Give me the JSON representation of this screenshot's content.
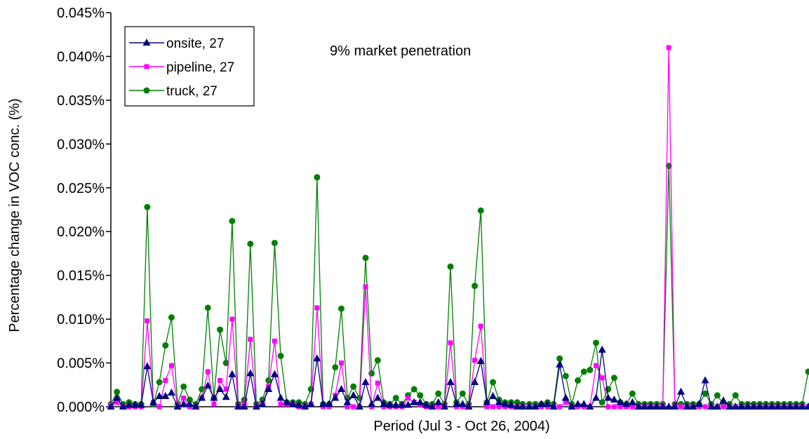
{
  "chart_data": {
    "type": "line",
    "title": "",
    "annotation": "9% market penetration",
    "xlabel": "Period (Jul 3 - Oct 26, 2004)",
    "ylabel": "Percentage change in VOC conc. (%)",
    "ylim": [
      0,
      0.045
    ],
    "yticks": [
      "0.000%",
      "0.005%",
      "0.010%",
      "0.015%",
      "0.020%",
      "0.025%",
      "0.030%",
      "0.035%",
      "0.040%",
      "0.045%"
    ],
    "grid": false,
    "legend_position": "top-left",
    "x": [
      0,
      1,
      2,
      3,
      4,
      5,
      6,
      7,
      8,
      9,
      10,
      11,
      12,
      13,
      14,
      15,
      16,
      17,
      18,
      19,
      20,
      21,
      22,
      23,
      24,
      25,
      26,
      27,
      28,
      29,
      30,
      31,
      32,
      33,
      34,
      35,
      36,
      37,
      38,
      39,
      40,
      41,
      42,
      43,
      44,
      45,
      46,
      47,
      48,
      49,
      50,
      51,
      52,
      53,
      54,
      55,
      56,
      57,
      58,
      59,
      60,
      61,
      62,
      63,
      64,
      65,
      66,
      67,
      67.9,
      69,
      70,
      71,
      72,
      73,
      74,
      75,
      76,
      77,
      78,
      79,
      80,
      81,
      82,
      83,
      84,
      85,
      86,
      87,
      88,
      89,
      90,
      91,
      92,
      93,
      94,
      95,
      96,
      97,
      98,
      99,
      100,
      101,
      102,
      103,
      104,
      105,
      106,
      107,
      108,
      109,
      110,
      111,
      112,
      113,
      114,
      115
    ],
    "series": [
      {
        "name": "onsite, 27",
        "color": "#000080",
        "marker": "triangle",
        "values": [
          0.0,
          0.001,
          0.0,
          0.0002,
          0.0002,
          0.0002,
          0.0046,
          0.0005,
          0.0012,
          0.0012,
          0.0016,
          0.0,
          0.0003,
          0.0003,
          0.0,
          0.001,
          0.0024,
          0.001,
          0.002,
          0.0011,
          0.0037,
          0.0,
          0.0,
          0.0038,
          0.0,
          0.0003,
          0.002,
          0.0037,
          0.001,
          0.0005,
          0.0003,
          0.0002,
          0.0,
          0.0003,
          0.0055,
          0.0003,
          0.0003,
          0.001,
          0.002,
          0.0005,
          0.0013,
          0.0,
          0.0028,
          0.0003,
          0.001,
          0.0003,
          0.0002,
          0.0002,
          0.0002,
          0.0002,
          0.0005,
          0.0005,
          0.0002,
          0.0,
          0.0005,
          0.0,
          0.0028,
          0.0003,
          0.0003,
          0.0,
          0.0028,
          0.0052,
          0.0005,
          0.0012,
          0.0005,
          0.0003,
          0.0002,
          0.0,
          0.0,
          0.0,
          0.0,
          0.0003,
          0.0003,
          0.0,
          0.0048,
          0.001,
          0.0,
          0.0003,
          0.0003,
          0.0,
          0.001,
          0.0065,
          0.001,
          0.0008,
          0.0005,
          0.0003,
          0.0005,
          0.0,
          0.0,
          0.0,
          0.0,
          0.0,
          0.0,
          0.0,
          0.0017,
          0.0,
          0.0,
          0.0003,
          0.003,
          0.0,
          0.0,
          0.0007,
          0.0,
          0.0,
          0.0,
          0.0,
          0.0,
          0.0,
          0.0,
          0.0,
          0.0,
          0.0,
          0.0,
          0.0,
          0.0,
          0.0
        ]
      },
      {
        "name": "pipeline, 27",
        "color": "#FF00FF",
        "marker": "square",
        "values": [
          0.0002,
          0.0005,
          0.0,
          0.0,
          0.0,
          0.0,
          0.0098,
          0.0005,
          0.0,
          0.003,
          0.0047,
          0.0,
          0.001,
          0.0,
          0.0,
          0.001,
          0.004,
          0.0003,
          0.003,
          0.002,
          0.01,
          0.0,
          0.0003,
          0.0077,
          0.0,
          0.0003,
          0.0023,
          0.0075,
          0.0003,
          0.0003,
          0.0003,
          0.0,
          0.0,
          0.0003,
          0.0113,
          0.0,
          0.0,
          0.0013,
          0.005,
          0.0,
          0.0,
          0.0,
          0.0137,
          0.0,
          0.0027,
          0.0,
          0.0,
          0.0,
          0.0,
          0.001,
          0.0005,
          0.0002,
          0.0,
          0.0,
          0.0,
          0.0,
          0.0073,
          0.0,
          0.0,
          0.0,
          0.0053,
          0.0092,
          0.0,
          0.0,
          0.0,
          0.0,
          0.0,
          0.0,
          0.0,
          0.0,
          0.0,
          0.0,
          0.0,
          0.0,
          0.0,
          0.0005,
          0.0,
          0.0,
          0.0,
          0.0,
          0.0047,
          0.0033,
          0.0,
          0.0,
          0.0,
          0.0,
          0.0,
          0.0,
          0.0,
          0.0,
          0.0,
          0.0,
          0.041,
          0.0,
          0.0,
          0.0,
          0.0,
          0.0,
          0.0,
          0.0,
          0.0,
          0.0,
          0.0,
          0.0,
          0.0,
          0.0,
          0.0,
          0.0,
          0.0,
          0.0,
          0.0,
          0.0,
          0.0,
          0.0,
          0.0,
          0.0
        ]
      },
      {
        "name": "truck, 27",
        "color": "#008000",
        "marker": "circle",
        "values": [
          0.0003,
          0.0017,
          0.0003,
          0.0005,
          0.0003,
          0.0003,
          0.0228,
          0.0003,
          0.0028,
          0.007,
          0.0102,
          0.0003,
          0.0023,
          0.0008,
          0.0003,
          0.002,
          0.0113,
          0.001,
          0.0088,
          0.005,
          0.0212,
          0.0003,
          0.0008,
          0.0186,
          0.0003,
          0.0008,
          0.003,
          0.0187,
          0.0058,
          0.0005,
          0.0005,
          0.0005,
          0.0003,
          0.002,
          0.0262,
          0.0003,
          0.0003,
          0.0045,
          0.0112,
          0.001,
          0.0023,
          0.001,
          0.017,
          0.0038,
          0.0053,
          0.0005,
          0.0003,
          0.001,
          0.0003,
          0.0013,
          0.002,
          0.0013,
          0.0003,
          0.0003,
          0.0015,
          0.0003,
          0.016,
          0.0005,
          0.0015,
          0.0003,
          0.0138,
          0.0224,
          0.0005,
          0.0028,
          0.0008,
          0.0005,
          0.0005,
          0.0005,
          0.0003,
          0.0003,
          0.0003,
          0.0003,
          0.0005,
          0.0003,
          0.0055,
          0.0035,
          0.0003,
          0.003,
          0.004,
          0.0042,
          0.0073,
          0.0005,
          0.002,
          0.0033,
          0.0005,
          0.0003,
          0.0015,
          0.0003,
          0.0003,
          0.0003,
          0.0003,
          0.0003,
          0.0275,
          0.0003,
          0.0003,
          0.0003,
          0.0003,
          0.0003,
          0.0015,
          0.0003,
          0.0013,
          0.0003,
          0.0003,
          0.0013,
          0.0003,
          0.0003,
          0.0003,
          0.0003,
          0.0003,
          0.0003,
          0.0003,
          0.0003,
          0.0003,
          0.0003,
          0.0003,
          0.004
        ]
      }
    ]
  }
}
